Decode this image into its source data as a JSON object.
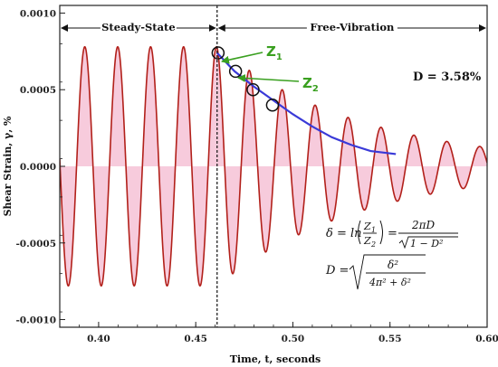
{
  "chart_data": {
    "type": "line",
    "xlabel": "Time, t, seconds",
    "ylabel": "Shear Strain, γ, %",
    "xlim": [
      0.38,
      0.6
    ],
    "ylim": [
      -0.00105,
      0.00105
    ],
    "xticks": [
      "0.40",
      "0.45",
      "0.50",
      "0.55",
      "0.60"
    ],
    "xtick_values": [
      0.4,
      0.45,
      0.5,
      0.55,
      0.6
    ],
    "yticks": [
      "0.0010",
      "0.0005",
      "0.0000",
      "-0.0005",
      "-0.0010"
    ],
    "ytick_values": [
      0.001,
      0.0005,
      0.0,
      -0.0005,
      -0.001
    ],
    "series": [
      {
        "signal": "measured",
        "color": "#b2201a",
        "fill_color": "#f6c2d6",
        "steady_amplitude": 0.00078,
        "steady_end": 0.461,
        "frequency_hz": 59,
        "damping_ratio": 0.0358,
        "end_time": 0.6
      },
      {
        "signal": "envelope",
        "color": "#3a3ad8",
        "x": [
          0.461,
          0.47,
          0.48,
          0.49,
          0.5,
          0.51,
          0.52,
          0.53,
          0.54,
          0.553
        ],
        "y": [
          0.00074,
          0.00062,
          0.00052,
          0.00043,
          0.00034,
          0.00026,
          0.00019,
          0.00014,
          0.0001,
          8e-05
        ]
      }
    ],
    "regions": [
      {
        "label": "Steady-State",
        "x": [
          0.38,
          0.461
        ]
      },
      {
        "label": "Free-Vibration",
        "x": [
          0.461,
          0.6
        ]
      }
    ],
    "divider_x": 0.461,
    "circled_peaks": [
      {
        "x": 0.4615,
        "y": 0.00074
      },
      {
        "x": 0.4705,
        "y": 0.00062
      },
      {
        "x": 0.4795,
        "y": 0.0005
      },
      {
        "x": 0.4895,
        "y": 0.0004
      }
    ],
    "annotations": {
      "damping": "D = 3.58%",
      "z1": "Z",
      "z1_sub": "1",
      "z2": "Z",
      "z2_sub": "2"
    },
    "formulas": {
      "delta": "δ = ln(Z₁/Z₂) = 2πD/√(1 − D²)",
      "damping": "D = √(δ²/(4π² + δ²))"
    }
  }
}
